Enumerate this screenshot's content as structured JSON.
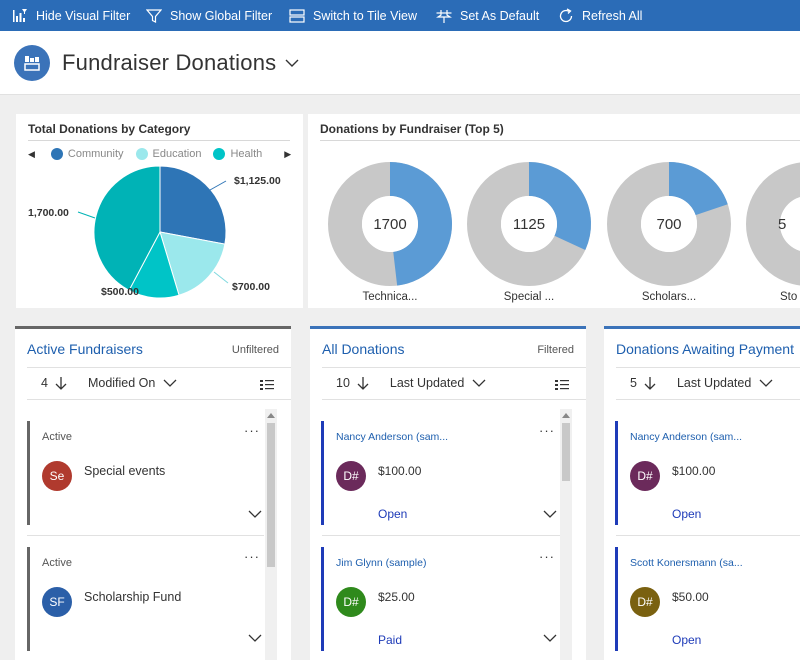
{
  "toolbar": {
    "hide_visual_filter": "Hide Visual Filter",
    "show_global_filter": "Show Global Filter",
    "switch_tile_view": "Switch to Tile View",
    "set_default": "Set As Default",
    "refresh_all": "Refresh All"
  },
  "header": {
    "title": "Fundraiser Donations"
  },
  "colors": {
    "toolbar": "#2b6cb7",
    "community": "#2e75b6",
    "education": "#9be8ec",
    "health": "#00c4c7",
    "status_bar": "#1e3bb8"
  },
  "category_chart": {
    "title": "Total Donations by Category",
    "legend": [
      "Community",
      "Education",
      "Health"
    ],
    "labels": [
      "$1,125.00",
      "$700.00",
      "$500.00",
      "1,700.00"
    ]
  },
  "fundraiser_chart": {
    "title": "Donations by Fundraiser (Top 5)",
    "centers": [
      "1700",
      "1125",
      "700",
      "5"
    ],
    "labels": [
      "Technica...",
      "Special ...",
      "Scholars...",
      "Sto"
    ]
  },
  "chart_data": [
    {
      "type": "pie",
      "title": "Total Donations by Category",
      "categories": [
        "Community",
        "Education",
        "Health",
        ""
      ],
      "values": [
        1125,
        700,
        500,
        1700
      ],
      "legend": "top"
    },
    {
      "type": "pie",
      "title": "Donations by Fundraiser (Top 5)",
      "categories": [
        "Technica...",
        "Special ...",
        "Scholars...",
        "Sto"
      ],
      "values": [
        1700,
        1125,
        700,
        5
      ]
    }
  ],
  "streams": {
    "active_fundraisers": {
      "title": "Active Fundraisers",
      "filter": "Unfiltered",
      "count": "4",
      "sort": "Modified On",
      "records": [
        {
          "status": "Active",
          "initials": "Se",
          "name": "Special events",
          "avatar_color": "#b03a2e"
        },
        {
          "status": "Active",
          "initials": "SF",
          "name": "Scholarship Fund",
          "avatar_color": "#2b5fa8"
        }
      ]
    },
    "all_donations": {
      "title": "All Donations",
      "filter": "Filtered",
      "count": "10",
      "sort": "Last Updated",
      "records": [
        {
          "name": "Nancy Anderson (sam...",
          "initials": "D#",
          "amount": "$100.00",
          "status": "Open",
          "avatar_color": "#6b2a5b"
        },
        {
          "name": "Jim Glynn (sample)",
          "initials": "D#",
          "amount": "$25.00",
          "status": "Paid",
          "avatar_color": "#2f8a1c"
        }
      ]
    },
    "awaiting_payment": {
      "title": "Donations Awaiting Payment",
      "count": "5",
      "sort": "Last Updated",
      "records": [
        {
          "name": "Nancy Anderson (sam...",
          "initials": "D#",
          "amount": "$100.00",
          "status": "Open",
          "avatar_color": "#6b2a5b"
        },
        {
          "name": "Scott Konersmann (sa...",
          "initials": "D#",
          "amount": "$50.00",
          "status": "Open",
          "avatar_color": "#7a6110"
        }
      ]
    }
  }
}
